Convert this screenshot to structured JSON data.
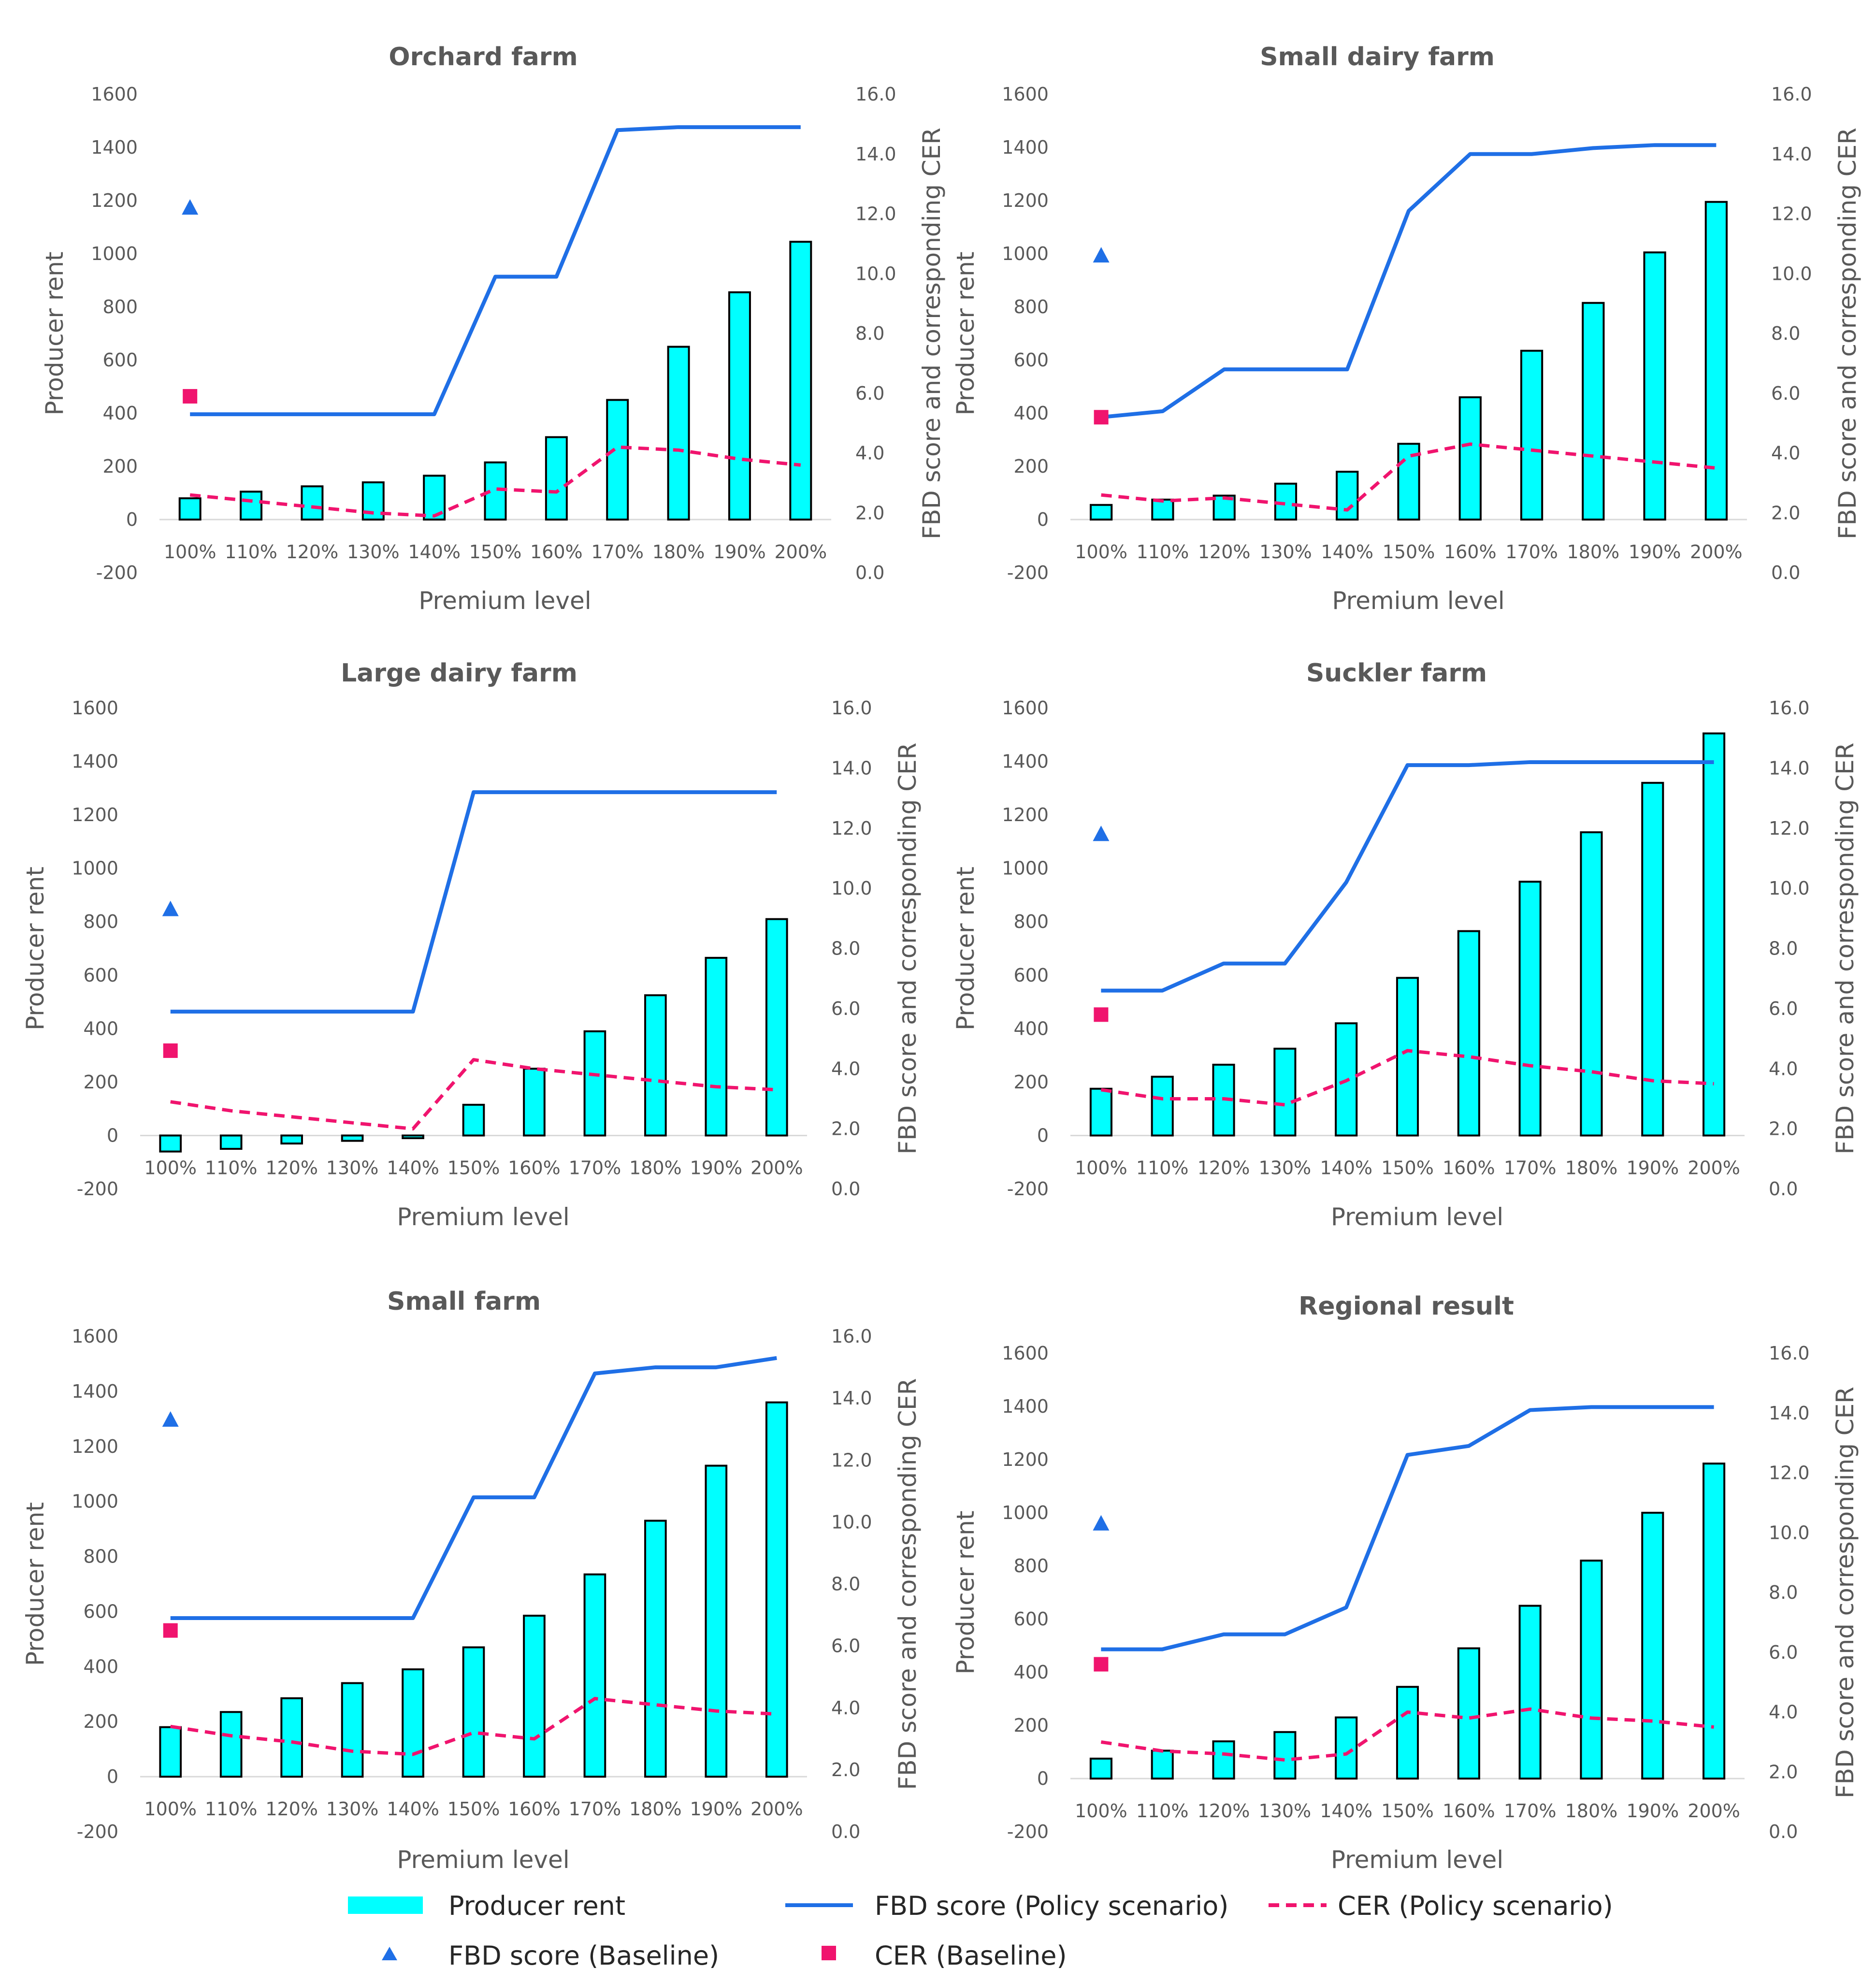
{
  "colors": {
    "bar": "#00FFFF",
    "bar_outline": "#000000",
    "fbd_line": "#1F6FE6",
    "cer_line": "#F0146E",
    "baseline_fbd": "#1F6FE6",
    "baseline_cer": "#F0146E",
    "text": "#595959",
    "gridline": "#D9D9D9"
  },
  "legend": {
    "producer_rent": "Producer rent",
    "fbd_policy": "FBD score (Policy scenario)",
    "cer_policy": "CER (Policy scenario)",
    "fbd_baseline": "FBD score (Baseline)",
    "cer_baseline": "CER (Baseline)"
  },
  "chart_data": [
    {
      "type": "bar",
      "title": "Orchard farm",
      "xlabel": "Premium level",
      "ylabel": "Producer rent",
      "y2label": "FBD score and corresponding CER",
      "categories": [
        "100%",
        "110%",
        "120%",
        "130%",
        "140%",
        "150%",
        "160%",
        "170%",
        "180%",
        "190%",
        "200%"
      ],
      "ylim": [
        -200,
        1600
      ],
      "y_ticks": [
        "1600",
        "1400",
        "1200",
        "1000",
        "800",
        "600",
        "400",
        "200",
        "0",
        "-200"
      ],
      "y2lim": [
        0,
        16
      ],
      "y2_ticks": [
        "16.0",
        "14.0",
        "12.0",
        "10.0",
        "8.0",
        "6.0",
        "4.0",
        "2.0",
        "0.0"
      ],
      "series": [
        {
          "name": "Producer rent",
          "axis": "left",
          "values": [
            80,
            105,
            125,
            140,
            165,
            215,
            310,
            450,
            650,
            855,
            1045
          ]
        },
        {
          "name": "FBD score (Policy scenario)",
          "axis": "right",
          "values": [
            5.3,
            5.3,
            5.3,
            5.3,
            5.3,
            9.9,
            9.9,
            14.8,
            14.9,
            14.9,
            14.9
          ]
        },
        {
          "name": "CER (Policy scenario)",
          "axis": "right",
          "values": [
            2.6,
            2.4,
            2.2,
            2.0,
            1.9,
            2.8,
            2.7,
            4.2,
            4.1,
            3.8,
            3.6
          ]
        }
      ],
      "baseline": {
        "fbd": 12.2,
        "cer": 5.9
      }
    },
    {
      "type": "bar",
      "title": "Small dairy farm",
      "xlabel": "Premium level",
      "ylabel": "Producer rent",
      "y2label": "FBD score and corresponding CER",
      "categories": [
        "100%",
        "110%",
        "120%",
        "130%",
        "140%",
        "150%",
        "160%",
        "170%",
        "180%",
        "190%",
        "200%"
      ],
      "ylim": [
        -200,
        1600
      ],
      "y_ticks": [
        "1600",
        "1400",
        "1200",
        "1000",
        "800",
        "600",
        "400",
        "200",
        "0",
        "-200"
      ],
      "y2lim": [
        0,
        16
      ],
      "y2_ticks": [
        "16.0",
        "14.0",
        "12.0",
        "10.0",
        "8.0",
        "6.0",
        "4.0",
        "2.0",
        "0.0"
      ],
      "series": [
        {
          "name": "Producer rent",
          "axis": "left",
          "values": [
            55,
            75,
            90,
            135,
            180,
            285,
            460,
            635,
            815,
            1005,
            1195
          ]
        },
        {
          "name": "FBD score (Policy scenario)",
          "axis": "right",
          "values": [
            5.2,
            5.4,
            6.8,
            6.8,
            6.8,
            12.1,
            14.0,
            14.0,
            14.2,
            14.3,
            14.3
          ]
        },
        {
          "name": "CER (Policy scenario)",
          "axis": "right",
          "values": [
            2.6,
            2.4,
            2.5,
            2.3,
            2.1,
            3.9,
            4.3,
            4.1,
            3.9,
            3.7,
            3.5
          ]
        }
      ],
      "baseline": {
        "fbd": 10.6,
        "cer": 5.2
      }
    },
    {
      "type": "bar",
      "title": "Large dairy farm",
      "xlabel": "Premium level",
      "ylabel": "Producer rent",
      "y2label": "FBD score and corresponding CER",
      "categories": [
        "100%",
        "110%",
        "120%",
        "130%",
        "140%",
        "150%",
        "160%",
        "170%",
        "180%",
        "190%",
        "200%"
      ],
      "ylim": [
        -200,
        1600
      ],
      "y_ticks": [
        "1600",
        "1400",
        "1200",
        "1000",
        "800",
        "600",
        "400",
        "200",
        "0",
        "-200"
      ],
      "y2lim": [
        0,
        16
      ],
      "y2_ticks": [
        "16.0",
        "14.0",
        "12.0",
        "10.0",
        "8.0",
        "6.0",
        "4.0",
        "2.0",
        "0.0"
      ],
      "series": [
        {
          "name": "Producer rent",
          "axis": "left",
          "values": [
            -60,
            -50,
            -30,
            -20,
            -10,
            115,
            250,
            390,
            525,
            665,
            810
          ]
        },
        {
          "name": "FBD score (Policy scenario)",
          "axis": "right",
          "values": [
            5.9,
            5.9,
            5.9,
            5.9,
            5.9,
            13.2,
            13.2,
            13.2,
            13.2,
            13.2,
            13.2
          ]
        },
        {
          "name": "CER (Policy scenario)",
          "axis": "right",
          "values": [
            2.9,
            2.6,
            2.4,
            2.2,
            2.0,
            4.3,
            4.0,
            3.8,
            3.6,
            3.4,
            3.3
          ]
        }
      ],
      "baseline": {
        "fbd": 9.3,
        "cer": 4.6
      }
    },
    {
      "type": "bar",
      "title": "Suckler farm",
      "xlabel": "Premium level",
      "ylabel": "Producer rent",
      "y2label": "FBD score and corresponding CER",
      "categories": [
        "100%",
        "110%",
        "120%",
        "130%",
        "140%",
        "150%",
        "160%",
        "170%",
        "180%",
        "190%",
        "200%"
      ],
      "ylim": [
        -200,
        1600
      ],
      "y_ticks": [
        "1600",
        "1400",
        "1200",
        "1000",
        "800",
        "600",
        "400",
        "200",
        "0",
        "-200"
      ],
      "y2lim": [
        0,
        16
      ],
      "y2_ticks": [
        "16.0",
        "14.0",
        "12.0",
        "10.0",
        "8.0",
        "6.0",
        "4.0",
        "2.0",
        "0.0"
      ],
      "series": [
        {
          "name": "Producer rent",
          "axis": "left",
          "values": [
            175,
            220,
            265,
            325,
            420,
            590,
            765,
            950,
            1135,
            1320,
            1505
          ]
        },
        {
          "name": "FBD score (Policy scenario)",
          "axis": "right",
          "values": [
            6.6,
            6.6,
            7.5,
            7.5,
            10.2,
            14.1,
            14.1,
            14.2,
            14.2,
            14.2,
            14.2
          ]
        },
        {
          "name": "CER (Policy scenario)",
          "axis": "right",
          "values": [
            3.3,
            3.0,
            3.0,
            2.8,
            3.6,
            4.6,
            4.4,
            4.1,
            3.9,
            3.6,
            3.5
          ]
        }
      ],
      "baseline": {
        "fbd": 11.8,
        "cer": 5.8
      }
    },
    {
      "type": "bar",
      "title": "Small farm",
      "xlabel": "Premium level",
      "ylabel": "Producer rent",
      "y2label": "FBD score and corresponding CER",
      "categories": [
        "100%",
        "110%",
        "120%",
        "130%",
        "140%",
        "150%",
        "160%",
        "170%",
        "180%",
        "190%",
        "200%"
      ],
      "ylim": [
        -200,
        1600
      ],
      "y_ticks": [
        "1600",
        "1400",
        "1200",
        "1000",
        "800",
        "600",
        "400",
        "200",
        "0",
        "-200"
      ],
      "y2lim": [
        0,
        16
      ],
      "y2_ticks": [
        "16.0",
        "14.0",
        "12.0",
        "10.0",
        "8.0",
        "6.0",
        "4.0",
        "2.0",
        "0.0"
      ],
      "series": [
        {
          "name": "Producer rent",
          "axis": "left",
          "values": [
            180,
            235,
            285,
            340,
            390,
            470,
            585,
            735,
            930,
            1130,
            1360
          ]
        },
        {
          "name": "FBD score (Policy scenario)",
          "axis": "right",
          "values": [
            6.9,
            6.9,
            6.9,
            6.9,
            6.9,
            10.8,
            10.8,
            14.8,
            15.0,
            15.0,
            15.3
          ]
        },
        {
          "name": "CER (Policy scenario)",
          "axis": "right",
          "values": [
            3.4,
            3.1,
            2.9,
            2.6,
            2.5,
            3.2,
            3.0,
            4.3,
            4.1,
            3.9,
            3.8
          ]
        }
      ],
      "baseline": {
        "fbd": 13.3,
        "cer": 6.5
      }
    },
    {
      "type": "bar",
      "title": "Regional result",
      "xlabel": "Premium level",
      "ylabel": "Producer rent",
      "y2label": "FBD score and corresponding CER",
      "categories": [
        "100%",
        "110%",
        "120%",
        "130%",
        "140%",
        "150%",
        "160%",
        "170%",
        "180%",
        "190%",
        "200%"
      ],
      "ylim": [
        -200,
        1600
      ],
      "y_ticks": [
        "1600",
        "1400",
        "1200",
        "1000",
        "800",
        "600",
        "400",
        "200",
        "0",
        "-200"
      ],
      "y2lim": [
        0,
        16
      ],
      "y2_ticks": [
        "16.0",
        "14.0",
        "12.0",
        "10.0",
        "8.0",
        "6.0",
        "4.0",
        "2.0",
        "0.0"
      ],
      "series": [
        {
          "name": "Producer rent",
          "axis": "left",
          "values": [
            75,
            105,
            140,
            175,
            230,
            345,
            490,
            650,
            820,
            1000,
            1185
          ]
        },
        {
          "name": "FBD score (Policy scenario)",
          "axis": "right",
          "values": [
            6.1,
            6.1,
            6.6,
            6.6,
            7.5,
            12.6,
            12.9,
            14.1,
            14.2,
            14.2,
            14.2
          ]
        },
        {
          "name": "CER (Policy scenario)",
          "axis": "right",
          "values": [
            3.0,
            2.7,
            2.6,
            2.4,
            2.6,
            4.0,
            3.8,
            4.1,
            3.8,
            3.7,
            3.5
          ]
        }
      ],
      "baseline": {
        "fbd": 10.3,
        "cer": 5.6
      }
    }
  ]
}
